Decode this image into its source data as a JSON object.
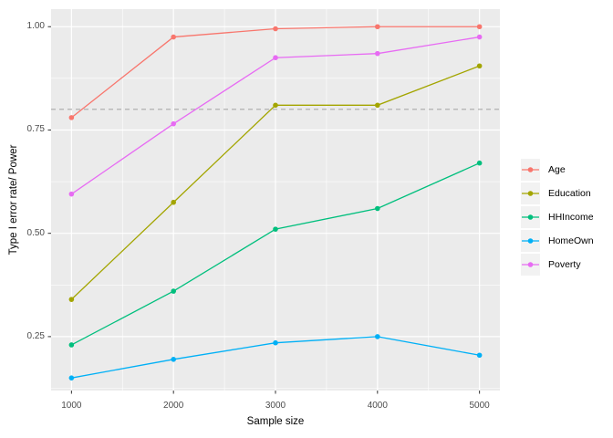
{
  "chart_data": {
    "type": "line",
    "title": "",
    "xlabel": "Sample size",
    "ylabel": "Type I error rate/ Power",
    "x": [
      1000,
      2000,
      3000,
      4000,
      5000
    ],
    "series": [
      {
        "name": "Age",
        "color": "#F8766D",
        "values": [
          0.78,
          0.975,
          0.995,
          1.0,
          1.0
        ]
      },
      {
        "name": "Education",
        "color": "#A3A500",
        "values": [
          0.34,
          0.575,
          0.81,
          0.81,
          0.905
        ]
      },
      {
        "name": "HHIncome",
        "color": "#00BF7D",
        "values": [
          0.23,
          0.36,
          0.51,
          0.56,
          0.67
        ]
      },
      {
        "name": "HomeOwn",
        "color": "#00B0F6",
        "values": [
          0.15,
          0.195,
          0.235,
          0.25,
          0.205
        ]
      },
      {
        "name": "Poverty",
        "color": "#E76BF3",
        "values": [
          0.595,
          0.765,
          0.925,
          0.935,
          0.975
        ]
      }
    ],
    "x_ticks": [
      "1000",
      "2000",
      "3000",
      "4000",
      "5000"
    ],
    "y_ticks": [
      "0.25",
      "0.50",
      "0.75",
      "1.00"
    ],
    "y_tick_values": [
      0.25,
      0.5,
      0.75,
      1.0
    ],
    "xlim": [
      800,
      5200
    ],
    "ylim": [
      0.1195,
      1.0425
    ],
    "minor_x": [
      1500,
      2500,
      3500,
      4500
    ],
    "minor_y": [
      0.125,
      0.375,
      0.625,
      0.875
    ],
    "reference_line": {
      "y": 0.8,
      "style": "dashed",
      "color": "#A9A9A9"
    },
    "grid": "on",
    "legend_position": "right",
    "colors": {
      "panel_bg": "#EBEBEB",
      "grid": "#FFFFFF",
      "axis_text": "#4D4D4D",
      "axis_tick_mark": "#333333",
      "legend_key_bg": "#F2F2F2",
      "plot_bg": "#FFFFFF"
    }
  }
}
